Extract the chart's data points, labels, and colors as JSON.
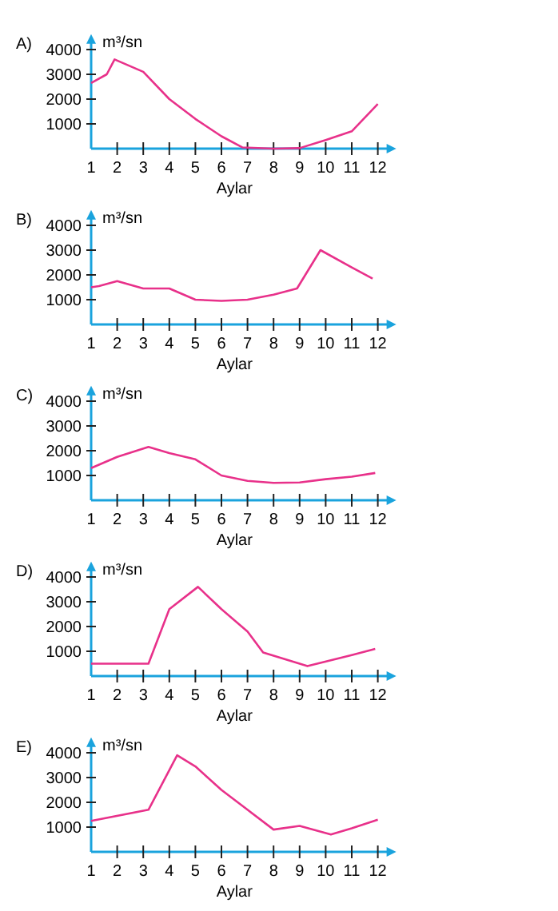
{
  "chart_data": [
    {
      "type": "line",
      "title": "A)",
      "ylabel": "m³/sn",
      "xlabel": "Aylar",
      "color": "#e8318a",
      "x": [
        1,
        1.6,
        1.9,
        3,
        4,
        5,
        6,
        6.8,
        8,
        9,
        10,
        11,
        12
      ],
      "values": [
        2650,
        3000,
        3600,
        3100,
        2000,
        1200,
        500,
        50,
        0,
        20,
        350,
        700,
        1800
      ],
      "xlim": [
        1,
        12.4
      ],
      "ylim": [
        0,
        4300
      ],
      "xticks": [
        1,
        2,
        3,
        4,
        5,
        6,
        7,
        8,
        9,
        10,
        11,
        12
      ],
      "yticks": [
        1000,
        2000,
        3000,
        4000
      ]
    },
    {
      "type": "line",
      "title": "B)",
      "ylabel": "m³/sn",
      "xlabel": "Aylar",
      "color": "#e8318a",
      "x": [
        1,
        1.3,
        2,
        3,
        4,
        5,
        6,
        7,
        8,
        8.9,
        9.8,
        11,
        11.8
      ],
      "values": [
        1500,
        1550,
        1750,
        1450,
        1450,
        1000,
        950,
        1000,
        1200,
        1450,
        3000,
        2300,
        1850
      ],
      "xlim": [
        1,
        12.4
      ],
      "ylim": [
        0,
        4300
      ],
      "xticks": [
        1,
        2,
        3,
        4,
        5,
        6,
        7,
        8,
        9,
        10,
        11,
        12
      ],
      "yticks": [
        1000,
        2000,
        3000,
        4000
      ]
    },
    {
      "type": "line",
      "title": "C)",
      "ylabel": "m³/sn",
      "xlabel": "Aylar",
      "color": "#e8318a",
      "x": [
        1,
        2,
        3.2,
        4,
        5,
        6,
        7,
        8,
        9,
        10,
        11,
        11.9
      ],
      "values": [
        1300,
        1750,
        2150,
        1900,
        1650,
        1000,
        780,
        700,
        720,
        850,
        950,
        1100
      ],
      "xlim": [
        1,
        12.4
      ],
      "ylim": [
        0,
        4300
      ],
      "xticks": [
        1,
        2,
        3,
        4,
        5,
        6,
        7,
        8,
        9,
        10,
        11,
        12
      ],
      "yticks": [
        1000,
        2000,
        3000,
        4000
      ]
    },
    {
      "type": "line",
      "title": "D)",
      "ylabel": "m³/sn",
      "xlabel": "Aylar",
      "color": "#e8318a",
      "x": [
        1,
        3.2,
        4,
        5.1,
        6,
        7,
        7.6,
        9.3,
        11,
        11.9
      ],
      "values": [
        500,
        500,
        2700,
        3600,
        2700,
        1800,
        950,
        400,
        850,
        1100
      ],
      "xlim": [
        1,
        12.4
      ],
      "ylim": [
        0,
        4300
      ],
      "xticks": [
        1,
        2,
        3,
        4,
        5,
        6,
        7,
        8,
        9,
        10,
        11,
        12
      ],
      "yticks": [
        1000,
        2000,
        3000,
        4000
      ]
    },
    {
      "type": "line",
      "title": "E)",
      "ylabel": "m³/sn",
      "xlabel": "Aylar",
      "color": "#e8318a",
      "x": [
        1,
        3.2,
        4.3,
        5,
        6,
        7,
        8,
        9,
        10.2,
        11,
        12
      ],
      "values": [
        1250,
        1700,
        3900,
        3450,
        2500,
        1700,
        900,
        1050,
        700,
        950,
        1300
      ],
      "xlim": [
        1,
        12.4
      ],
      "ylim": [
        0,
        4300
      ],
      "xticks": [
        1,
        2,
        3,
        4,
        5,
        6,
        7,
        8,
        9,
        10,
        11,
        12
      ],
      "yticks": [
        1000,
        2000,
        3000,
        4000
      ]
    }
  ]
}
